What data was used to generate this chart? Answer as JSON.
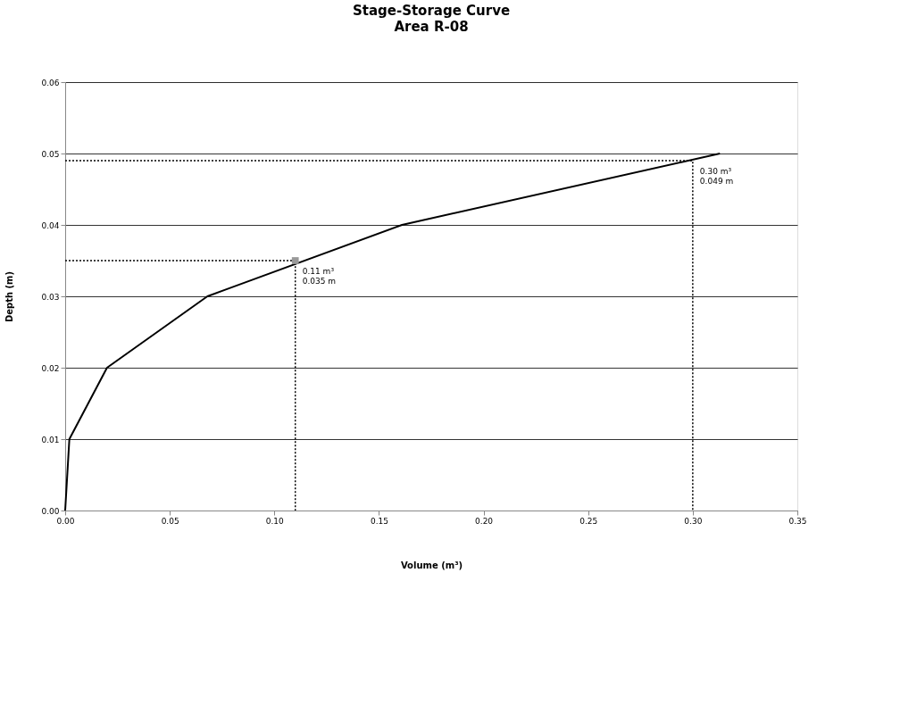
{
  "chart_data": {
    "type": "line",
    "title": "Stage-Storage Curve",
    "subtitle": "Area R-08",
    "xlabel": "Volume (m³)",
    "ylabel": "Depth (m)",
    "xlim": [
      0,
      0.35
    ],
    "ylim": [
      0,
      0.06
    ],
    "xticks": [
      {
        "value": 0,
        "label": "0.00"
      },
      {
        "value": 0.05,
        "label": "0.05"
      },
      {
        "value": 0.1,
        "label": "0.10"
      },
      {
        "value": 0.15,
        "label": "0.15"
      },
      {
        "value": 0.2,
        "label": "0.20"
      },
      {
        "value": 0.25,
        "label": "0.25"
      },
      {
        "value": 0.3,
        "label": "0.30"
      },
      {
        "value": 0.35,
        "label": "0.35"
      }
    ],
    "yticks": [
      {
        "value": 0,
        "label": "0.00"
      },
      {
        "value": 0.01,
        "label": "0.01"
      },
      {
        "value": 0.02,
        "label": "0.02"
      },
      {
        "value": 0.03,
        "label": "0.03"
      },
      {
        "value": 0.04,
        "label": "0.04"
      },
      {
        "value": 0.05,
        "label": "0.05"
      },
      {
        "value": 0.06,
        "label": "0.06"
      }
    ],
    "grid": "y",
    "series": [
      {
        "color": "#000000",
        "line_style": "solid",
        "x": [
          0,
          0.002,
          0.02,
          0.068,
          0.161,
          0.313
        ],
        "values": [
          0,
          0.01,
          0.02,
          0.03,
          0.04,
          0.05
        ]
      },
      {
        "type": "line",
        "color": "#000000",
        "line_style": "dotted",
        "x": [
          0,
          0.11,
          0.11
        ],
        "values": [
          0.035,
          0.035,
          0
        ]
      },
      {
        "type": "line",
        "color": "#000000",
        "line_style": "dotted",
        "x": [
          0,
          0.3,
          0.3
        ],
        "values": [
          0.049,
          0.049,
          0
        ]
      },
      {
        "type": "scatter",
        "color": "#999999",
        "marker": "square",
        "x": [
          0.11
        ],
        "values": [
          0.035
        ]
      }
    ],
    "annotations": [
      {
        "text": "0.11 m³\n0.035 m",
        "x": 0.11,
        "y": 0.035
      },
      {
        "text": "0.30 m³\n0.049 m",
        "x": 0.3,
        "y": 0.049
      }
    ]
  }
}
